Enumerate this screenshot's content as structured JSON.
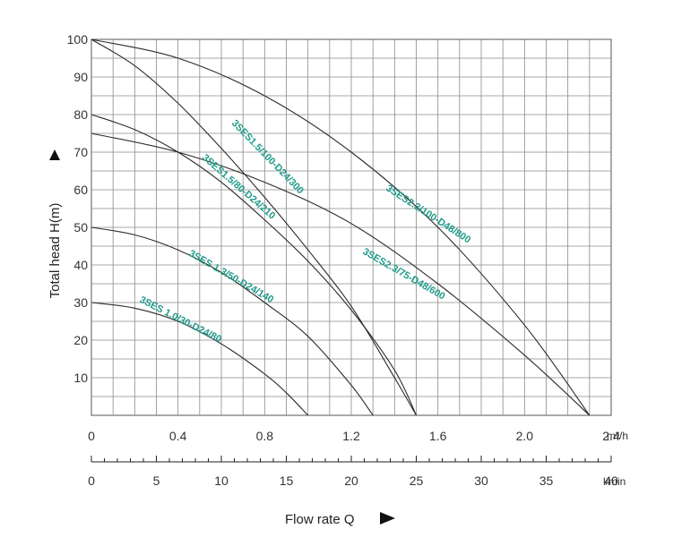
{
  "chart_data": {
    "type": "line",
    "xlabel": "Flow rate Q",
    "ylabel": "Total head H(m)",
    "x_unit": "m³/h",
    "x_secondary_unit": "l/min",
    "xlim": [
      0,
      2.4
    ],
    "ylim": [
      0,
      100
    ],
    "x_ticks": [
      "0",
      "0.4",
      "0.8",
      "1.2",
      "1.6",
      "2.0",
      "2.4"
    ],
    "x_secondary_ticks": [
      "0",
      "5",
      "10",
      "15",
      "20",
      "25",
      "30",
      "35",
      "40"
    ],
    "y_ticks": [
      "10",
      "20",
      "30",
      "40",
      "50",
      "60",
      "70",
      "80",
      "90",
      "100"
    ],
    "grid": true,
    "series": [
      {
        "name": "3SES 1.0/30-D24/80",
        "x": [
          0,
          0.2,
          0.4,
          0.6,
          0.8,
          0.9,
          1.0
        ],
        "y": [
          30,
          28.5,
          25,
          19,
          11,
          6,
          0
        ]
      },
      {
        "name": "3SES 1.3/50-D24/140",
        "x": [
          0,
          0.2,
          0.4,
          0.6,
          0.8,
          1.0,
          1.2,
          1.3
        ],
        "y": [
          50,
          48,
          44,
          38,
          30,
          21,
          8,
          0
        ]
      },
      {
        "name": "3SES1.5/80-D24/210",
        "x": [
          0,
          0.2,
          0.4,
          0.6,
          0.8,
          1.0,
          1.2,
          1.4,
          1.5
        ],
        "y": [
          80,
          76,
          70,
          62,
          52,
          41,
          28,
          12,
          0
        ]
      },
      {
        "name": "3SES1.5/100-D24/300",
        "x": [
          0,
          0.2,
          0.4,
          0.6,
          0.8,
          1.0,
          1.2,
          1.4,
          1.5
        ],
        "y": [
          100,
          93,
          83,
          71,
          58,
          44,
          29,
          10,
          0
        ]
      },
      {
        "name": "3SES2.3/75-D48/600",
        "x": [
          0,
          0.4,
          0.8,
          1.2,
          1.6,
          2.0,
          2.3
        ],
        "y": [
          75,
          70,
          62,
          51,
          35,
          16,
          0
        ]
      },
      {
        "name": "3SES2.3/100-D48/800",
        "x": [
          0,
          0.4,
          0.8,
          1.2,
          1.6,
          2.0,
          2.3
        ],
        "y": [
          100,
          95,
          85,
          70,
          50,
          24,
          0
        ]
      }
    ]
  }
}
